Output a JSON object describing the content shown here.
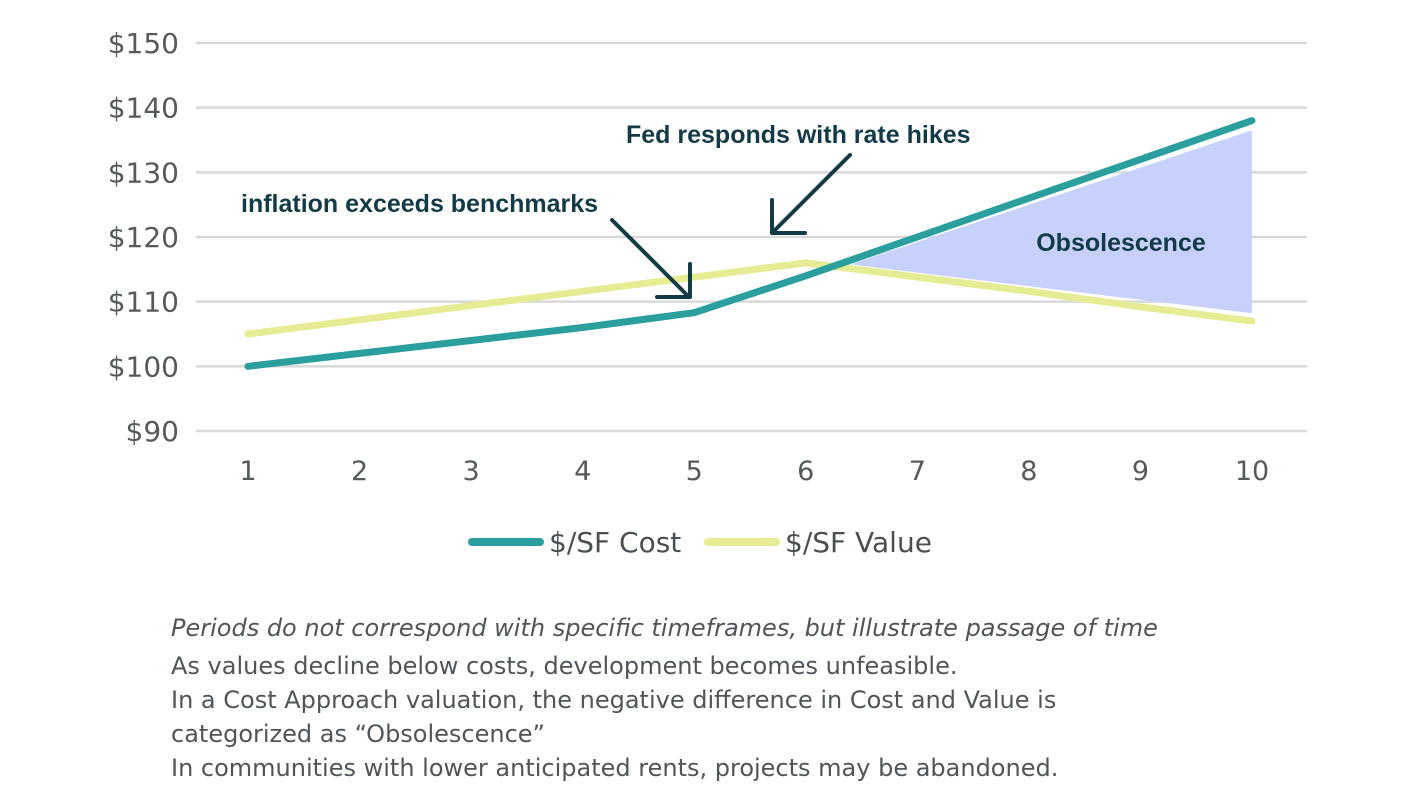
{
  "chart_data": {
    "type": "line",
    "x": [
      1,
      2,
      3,
      4,
      5,
      6,
      7,
      8,
      9,
      10
    ],
    "series": [
      {
        "name": "$/SF Cost",
        "color": "#2b9e9e",
        "values": [
          100,
          102,
          104,
          106,
          108.3,
          114,
          120,
          126,
          132,
          138
        ]
      },
      {
        "name": "$/SF Value",
        "color": "#e6ec93",
        "values": [
          105,
          107.2,
          109.4,
          111.6,
          113.8,
          116,
          113.8,
          111.6,
          109.2,
          107
        ]
      }
    ],
    "ylim": [
      90,
      150
    ],
    "yticks": [
      90,
      100,
      110,
      120,
      130,
      140,
      150
    ],
    "ytick_labels": [
      "$90",
      "$100",
      "$110",
      "$120",
      "$130",
      "$140",
      "$150"
    ],
    "xtick_labels": [
      "1",
      "2",
      "3",
      "4",
      "5",
      "6",
      "7",
      "8",
      "9",
      "10"
    ],
    "shaded_region": {
      "label": "Obsolescence",
      "color": "#c7d1fb",
      "from_x": 6.4,
      "to_x": 10,
      "top_end": 136.5,
      "bottom_end": 108.2
    },
    "annotations": [
      {
        "text": "inflation exceeds benchmarks",
        "arrow_to_x": 5,
        "arrow_to_y": 113
      },
      {
        "text": "Fed responds with rate hikes",
        "arrow_to_x": 5.7,
        "arrow_to_y": 120
      }
    ],
    "grid": true,
    "legend": "bottom-center"
  },
  "notes": {
    "italic": "Periods do not correspond with specific timeframes, but illustrate passage of time",
    "line1": "As values decline below costs, development becomes unfeasible.",
    "line2": "In a Cost Approach valuation, the negative difference in Cost and Value is\ncategorized as “Obsolescence”",
    "line3": "In communities with lower anticipated rents, projects may be abandoned."
  }
}
